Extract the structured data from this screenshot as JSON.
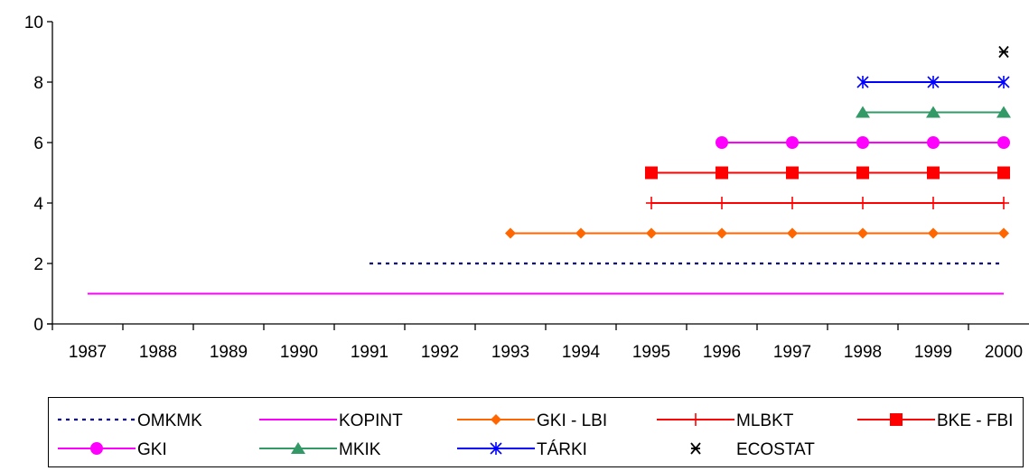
{
  "chart_data": {
    "type": "line",
    "x": [
      "1987",
      "1988",
      "1989",
      "1990",
      "1991",
      "1992",
      "1993",
      "1994",
      "1995",
      "1996",
      "1997",
      "1998",
      "1999",
      "2000"
    ],
    "ylim": [
      0,
      10
    ],
    "yticks": [
      0,
      2,
      4,
      6,
      8,
      10
    ],
    "grid": false,
    "legend_position": "bottom",
    "series": [
      {
        "name": "OMKMK",
        "color": "#000080",
        "style": "dotted",
        "marker": "none",
        "points": [
          [
            1991,
            2
          ],
          [
            2000,
            2
          ]
        ]
      },
      {
        "name": "KOPINT",
        "color": "#ff00ff",
        "style": "solid",
        "marker": "none",
        "points": [
          [
            1987,
            1
          ],
          [
            2000,
            1
          ]
        ]
      },
      {
        "name": "GKI - LBI",
        "color": "#ff6600",
        "style": "solid",
        "marker": "diamond",
        "points": [
          [
            1993,
            3
          ],
          [
            1994,
            3
          ],
          [
            1995,
            3
          ],
          [
            1996,
            3
          ],
          [
            1997,
            3
          ],
          [
            1998,
            3
          ],
          [
            1999,
            3
          ],
          [
            2000,
            3
          ]
        ]
      },
      {
        "name": "MLBKT",
        "color": "#ff0000",
        "style": "solid",
        "marker": "plus",
        "points": [
          [
            1995,
            4
          ],
          [
            1996,
            4
          ],
          [
            1997,
            4
          ],
          [
            1998,
            4
          ],
          [
            1999,
            4
          ],
          [
            2000,
            4
          ]
        ]
      },
      {
        "name": "BKE - FBI",
        "color": "#ff0000",
        "style": "solid",
        "marker": "square",
        "points": [
          [
            1995,
            5
          ],
          [
            1996,
            5
          ],
          [
            1997,
            5
          ],
          [
            1998,
            5
          ],
          [
            1999,
            5
          ],
          [
            2000,
            5
          ]
        ]
      },
      {
        "name": "GKI",
        "color": "#ff00ff",
        "style": "solid",
        "marker": "circle",
        "points": [
          [
            1996,
            6
          ],
          [
            1997,
            6
          ],
          [
            1998,
            6
          ],
          [
            1999,
            6
          ],
          [
            2000,
            6
          ]
        ]
      },
      {
        "name": "MKIK",
        "color": "#339966",
        "style": "solid",
        "marker": "triangle",
        "points": [
          [
            1998,
            7
          ],
          [
            1999,
            7
          ],
          [
            2000,
            7
          ]
        ]
      },
      {
        "name": "TÁRKI",
        "color": "#0000ff",
        "style": "solid",
        "marker": "asterisk",
        "points": [
          [
            1998,
            8
          ],
          [
            1999,
            8
          ],
          [
            2000,
            8
          ]
        ]
      },
      {
        "name": "ECOSTAT",
        "color": "#000000",
        "style": "none",
        "marker": "x-star",
        "points": [
          [
            2000,
            9
          ]
        ]
      }
    ]
  }
}
